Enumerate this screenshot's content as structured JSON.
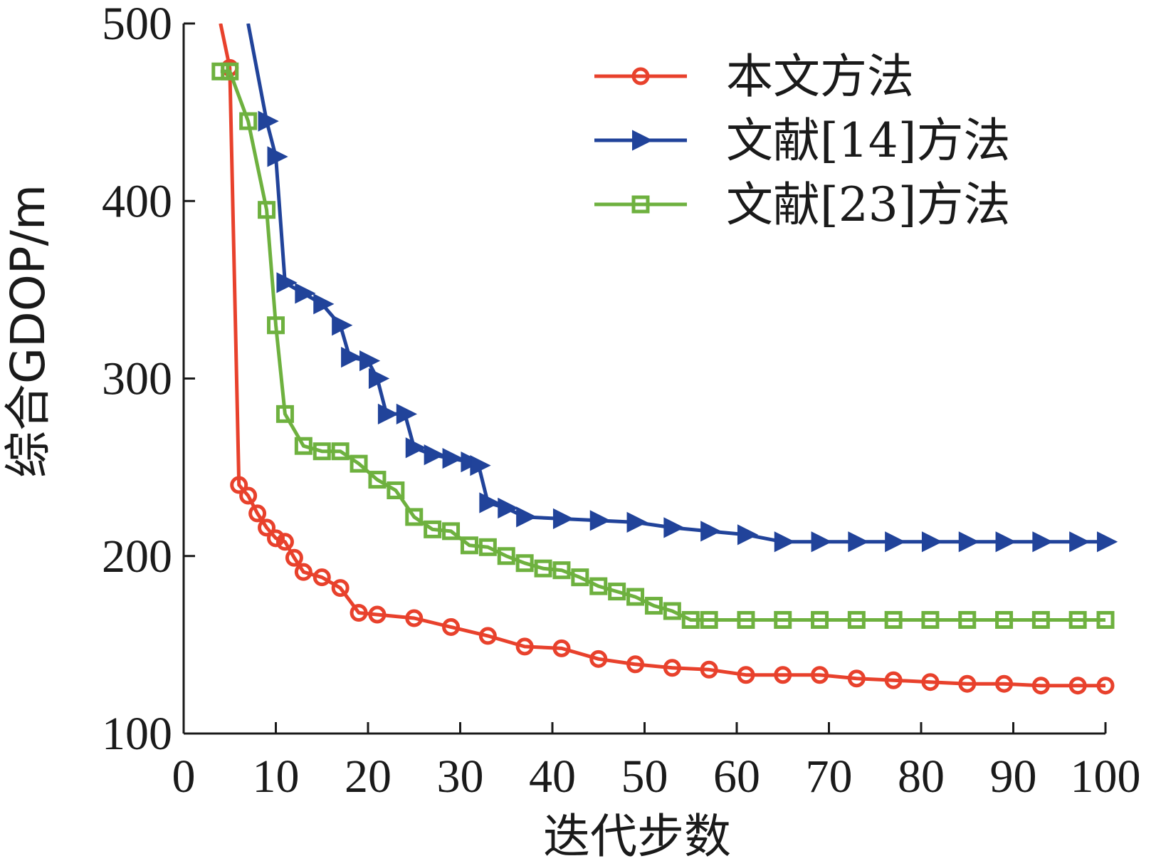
{
  "chart_data": {
    "type": "line",
    "xlabel": "迭代步数",
    "ylabel": "综合GDOP/m",
    "xlim": [
      0,
      100
    ],
    "ylim": [
      100,
      500
    ],
    "xticks": [
      0,
      10,
      20,
      30,
      40,
      50,
      60,
      70,
      80,
      90,
      100
    ],
    "yticks": [
      100,
      200,
      300,
      400,
      500
    ],
    "grid": false,
    "legend_position": "top-right",
    "series": [
      {
        "name": "本文方法",
        "color": "#e8412c",
        "marker": "circle",
        "x": [
          4,
          5,
          6,
          7,
          8,
          9,
          10,
          11,
          12,
          13,
          15,
          17,
          19,
          21,
          25,
          29,
          33,
          37,
          41,
          45,
          49,
          53,
          57,
          61,
          65,
          69,
          73,
          77,
          81,
          85,
          89,
          93,
          97,
          100
        ],
        "y": [
          500,
          475,
          240,
          234,
          224,
          216,
          210,
          208,
          199,
          191,
          188,
          182,
          168,
          167,
          165,
          160,
          155,
          149,
          148,
          142,
          139,
          137,
          136,
          133,
          133,
          133,
          131,
          130,
          129,
          128,
          128,
          127,
          127,
          127
        ]
      },
      {
        "name": "文献[14]方法",
        "color": "#21439a",
        "marker": "triangle-right",
        "x": [
          7,
          9,
          10,
          11,
          13,
          15,
          17,
          18,
          20,
          21,
          22,
          24,
          25,
          27,
          29,
          31,
          32,
          33,
          35,
          37,
          41,
          45,
          49,
          53,
          57,
          61,
          65,
          69,
          73,
          77,
          81,
          85,
          89,
          93,
          97,
          100
        ],
        "y": [
          500,
          445,
          425,
          354,
          348,
          342,
          330,
          312,
          310,
          300,
          280,
          280,
          261,
          257,
          255,
          253,
          251,
          230,
          227,
          222,
          221,
          220,
          219,
          216,
          214,
          212,
          208,
          208,
          208,
          208,
          208,
          208,
          208,
          208,
          208,
          208
        ]
      },
      {
        "name": "文献[23]方法",
        "color": "#6eb13f",
        "marker": "square",
        "x": [
          4,
          5,
          7,
          9,
          10,
          11,
          13,
          15,
          17,
          19,
          21,
          23,
          25,
          27,
          29,
          31,
          33,
          35,
          37,
          39,
          41,
          43,
          45,
          47,
          49,
          51,
          53,
          55,
          57,
          61,
          65,
          69,
          73,
          77,
          81,
          85,
          89,
          93,
          97,
          100
        ],
        "y": [
          473,
          473,
          445,
          395,
          330,
          280,
          262,
          259,
          259,
          252,
          243,
          237,
          222,
          215,
          214,
          206,
          205,
          200,
          196,
          193,
          192,
          188,
          183,
          180,
          177,
          172,
          169,
          164,
          164,
          164,
          164,
          164,
          164,
          164,
          164,
          164,
          164,
          164,
          164,
          164
        ]
      }
    ]
  }
}
